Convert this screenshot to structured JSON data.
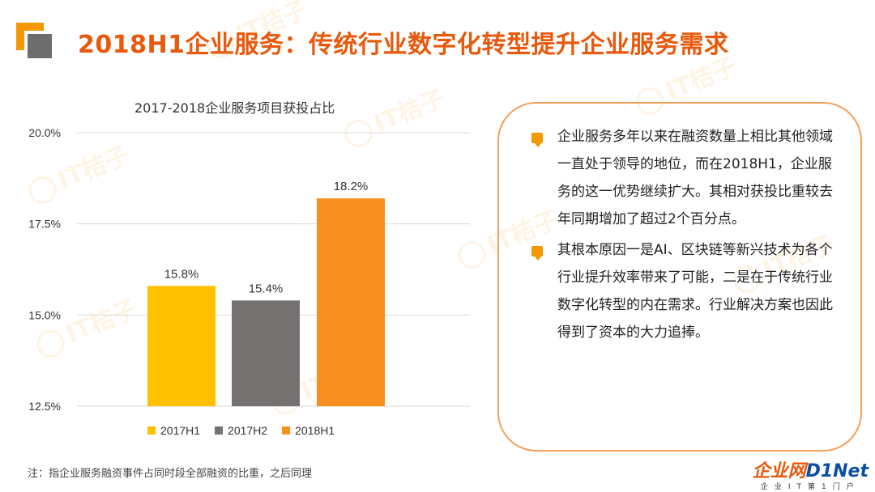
{
  "header": {
    "title": "2018H1企业服务：传统行业数字化转型提升企业服务需求"
  },
  "watermark": "IT桔子",
  "chart_data": {
    "type": "bar",
    "title": "2017-2018企业服务项目获投占比",
    "categories": [
      "2017H1",
      "2017H2",
      "2018H1"
    ],
    "values": [
      15.8,
      15.4,
      18.2
    ],
    "value_labels": [
      "15.8%",
      "15.4%",
      "18.2%"
    ],
    "colors": [
      "#ffc000",
      "#767171",
      "#f7901e"
    ],
    "ylim": [
      12.5,
      20.0
    ],
    "yticks": [
      "20.0%",
      "17.5%",
      "15.0%",
      "12.5%"
    ],
    "ytick_values": [
      20.0,
      17.5,
      15.0,
      12.5
    ],
    "grid": true,
    "legend_position": "bottom",
    "xlabel": "",
    "ylabel": ""
  },
  "textbox": {
    "paragraphs": [
      "企业服务多年以来在融资数量上相比其他领域一直处于领导的地位，而在2018H1，企业服务的这一优势继续扩大。其相对获投比重较去年同期增加了超过2个百分点。",
      "其根本原因一是AI、区块链等新兴技术为各个行业提升效率带来了可能，二是在于传统行业数字化转型的内在需求。行业解决方案也因此得到了资本的大力追捧。"
    ]
  },
  "footnote": "注：指企业服务融资事件占同时段全部融资的比重，之后同理",
  "brand": {
    "main_prefix": "企业网",
    "main_suffix": "D1Net",
    "sub": "企业IT第1门户"
  }
}
